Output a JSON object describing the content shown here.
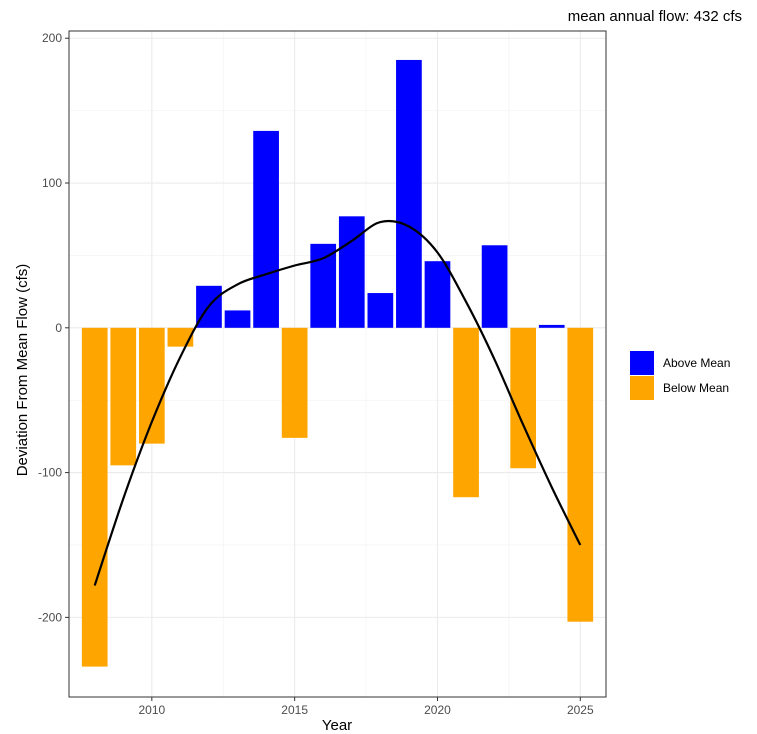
{
  "chart_data": {
    "type": "bar",
    "subtitle": "mean annual flow: 432 cfs",
    "xlabel": "Year",
    "ylabel": "Deviation From Mean Flow (cfs)",
    "x_ticks": [
      2010,
      2015,
      2020,
      2025
    ],
    "y_ticks": [
      -200,
      -100,
      0,
      100,
      200
    ],
    "xlim": [
      2007.1,
      2025.9
    ],
    "ylim": [
      -255,
      205
    ],
    "grid": true,
    "legend_position": "right",
    "colors": {
      "above": "#0000ff",
      "below": "#ffa500",
      "trend": "#000000"
    },
    "legend": [
      {
        "label": "Above Mean",
        "color": "#0000ff"
      },
      {
        "label": "Below Mean",
        "color": "#ffa500"
      }
    ],
    "series": [
      {
        "years": [
          2008,
          2009,
          2010,
          2011,
          2012,
          2013,
          2014,
          2015,
          2016,
          2017,
          2018,
          2019,
          2020,
          2021,
          2022,
          2023,
          2024,
          2025
        ],
        "values": [
          -234,
          -95,
          -80,
          -13,
          29,
          12,
          136,
          -76,
          58,
          77,
          24,
          185,
          46,
          -117,
          57,
          -97,
          2,
          -203
        ]
      }
    ],
    "trend_line": {
      "x": [
        2008,
        2009,
        2010,
        2011,
        2012,
        2013,
        2014,
        2015,
        2016,
        2017,
        2018,
        2019,
        2020,
        2021,
        2022,
        2023,
        2024,
        2025
      ],
      "y": [
        -178,
        -118,
        -65,
        -20,
        15,
        30,
        37,
        43,
        48,
        60,
        73,
        70,
        52,
        18,
        -22,
        -67,
        -110,
        -150
      ]
    }
  }
}
